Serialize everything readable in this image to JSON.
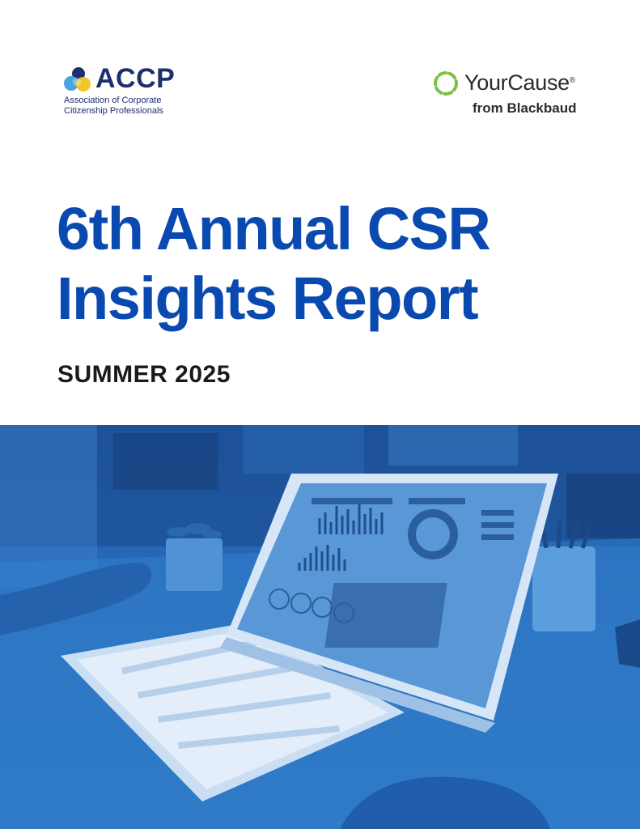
{
  "logos": {
    "accp": {
      "wordmark": "ACCP",
      "subtitle": "Association of Corporate\nCitizenship Professionals"
    },
    "yourcause": {
      "wordmark": "YourCause",
      "registered": "®",
      "subtitle": "from Blackbaud"
    }
  },
  "title": {
    "line1": "6th Annual CSR",
    "line2": "Insights Report"
  },
  "subtitle": "SUMMER 2025",
  "photo": {
    "description_icon": "laptop-dashboard-photo",
    "tint_color": "#2a6cb9"
  },
  "colors": {
    "title_blue": "#0a4ab0",
    "accp_navy": "#1c2f6e",
    "yourcause_green": "#7ac142"
  }
}
